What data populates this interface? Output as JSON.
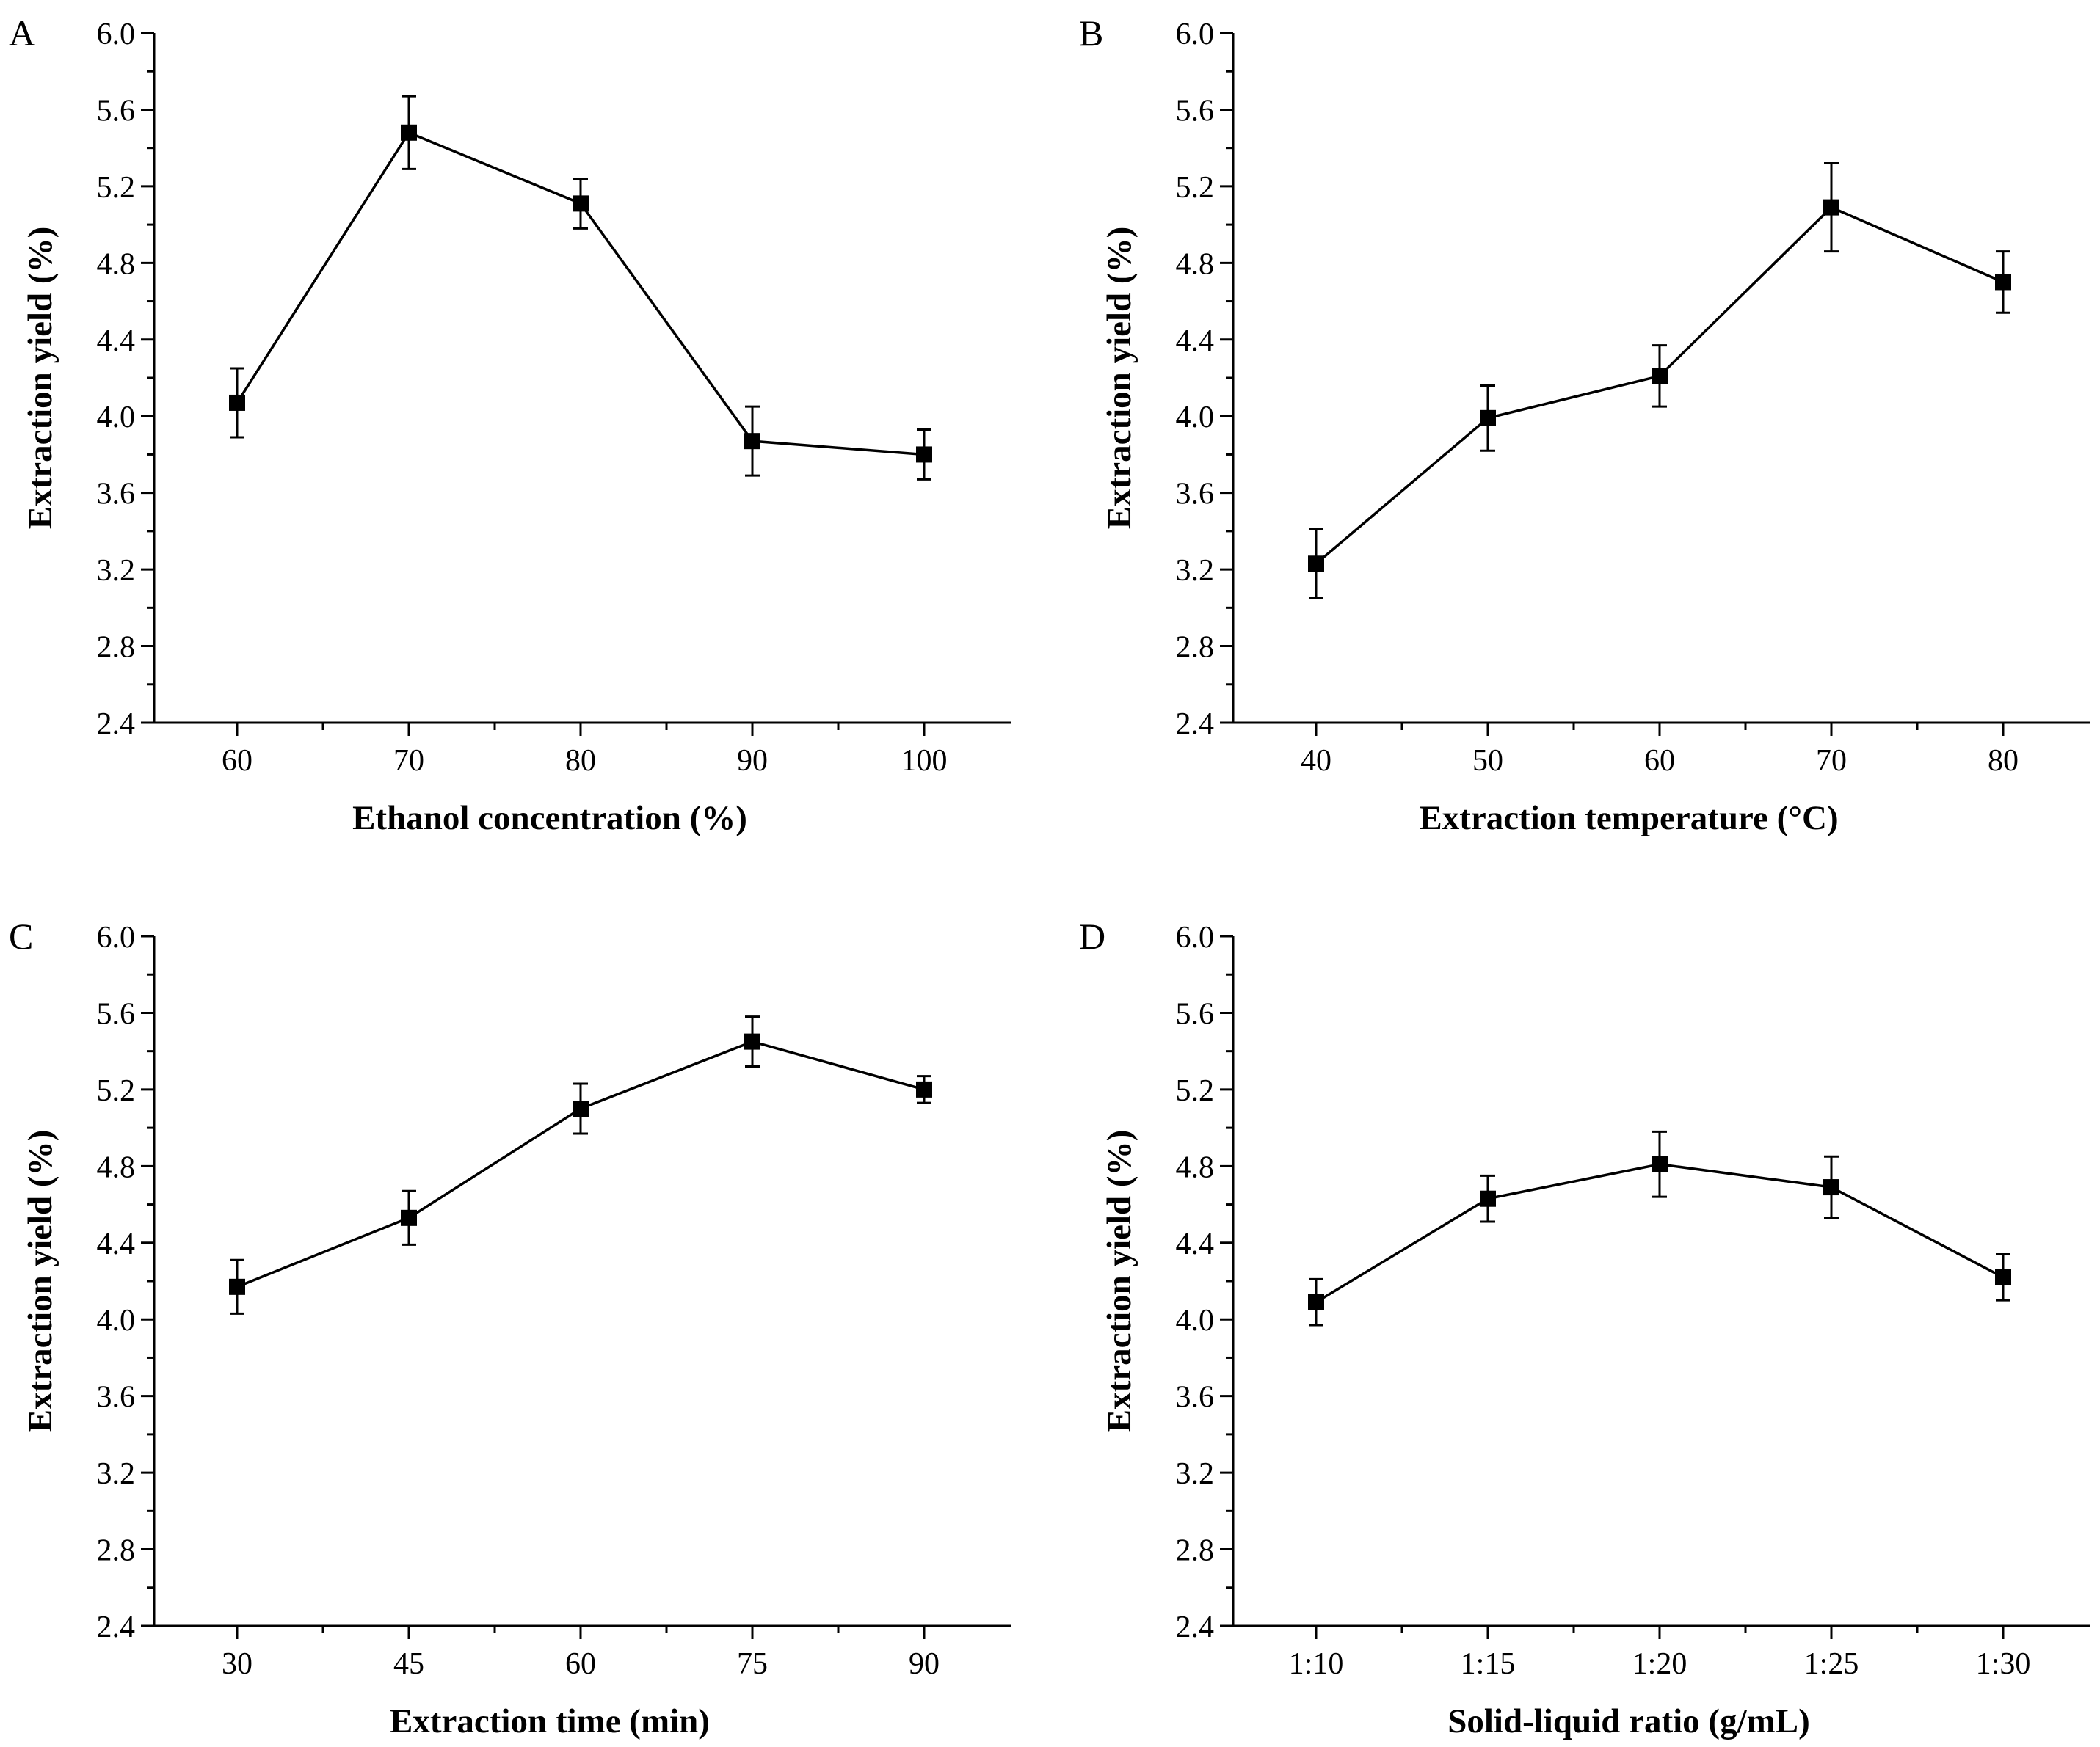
{
  "chart_data": [
    {
      "type": "line",
      "panel": "A",
      "title": "",
      "xlabel": "Ethanol concentration (%)",
      "ylabel": "Extraction yield (%)",
      "categories": [
        "60",
        "70",
        "80",
        "90",
        "100"
      ],
      "values": [
        4.07,
        5.48,
        5.11,
        3.87,
        3.8
      ],
      "errors": [
        0.18,
        0.19,
        0.13,
        0.18,
        0.13
      ],
      "ylim": [
        2.4,
        6.0
      ],
      "yticks": [
        "2.4",
        "2.8",
        "3.2",
        "3.6",
        "4.0",
        "4.4",
        "4.8",
        "5.2",
        "5.6",
        "6.0"
      ],
      "marker": "square",
      "grid": false,
      "color": "#000000"
    },
    {
      "type": "line",
      "panel": "B",
      "title": "",
      "xlabel": "Extraction temperature (°C)",
      "ylabel": "Extraction yield (%)",
      "categories": [
        "40",
        "50",
        "60",
        "70",
        "80"
      ],
      "values": [
        3.23,
        3.99,
        4.21,
        5.09,
        4.7
      ],
      "errors": [
        0.18,
        0.17,
        0.16,
        0.23,
        0.16
      ],
      "ylim": [
        2.4,
        6.0
      ],
      "yticks": [
        "2.4",
        "2.8",
        "3.2",
        "3.6",
        "4.0",
        "4.4",
        "4.8",
        "5.2",
        "5.6",
        "6.0"
      ],
      "marker": "square",
      "grid": false,
      "color": "#000000"
    },
    {
      "type": "line",
      "panel": "C",
      "title": "",
      "xlabel": "Extraction time (min)",
      "ylabel": "Extraction yield (%)",
      "categories": [
        "30",
        "45",
        "60",
        "75",
        "90"
      ],
      "values": [
        4.17,
        4.53,
        5.1,
        5.45,
        5.2
      ],
      "errors": [
        0.14,
        0.14,
        0.13,
        0.13,
        0.07
      ],
      "ylim": [
        2.4,
        6.0
      ],
      "yticks": [
        "2.4",
        "2.8",
        "3.2",
        "3.6",
        "4.0",
        "4.4",
        "4.8",
        "5.2",
        "5.6",
        "6.0"
      ],
      "marker": "square",
      "grid": false,
      "color": "#000000"
    },
    {
      "type": "line",
      "panel": "D",
      "title": "",
      "xlabel": "Solid-liquid ratio (g/mL)",
      "ylabel": "Extraction yield (%)",
      "categories": [
        "1:10",
        "1:15",
        "1:20",
        "1:25",
        "1:30"
      ],
      "values": [
        4.09,
        4.63,
        4.81,
        4.69,
        4.22
      ],
      "errors": [
        0.12,
        0.12,
        0.17,
        0.16,
        0.12
      ],
      "ylim": [
        2.4,
        6.0
      ],
      "yticks": [
        "2.4",
        "2.8",
        "3.2",
        "3.6",
        "4.0",
        "4.4",
        "4.8",
        "5.2",
        "5.6",
        "6.0"
      ],
      "marker": "square",
      "grid": false,
      "color": "#000000"
    }
  ]
}
